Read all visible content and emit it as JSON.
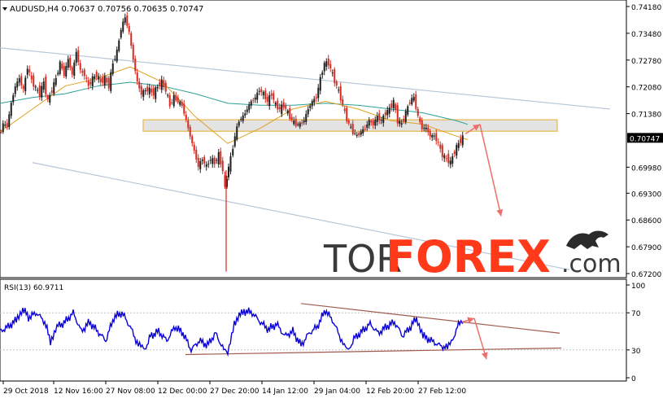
{
  "header": {
    "symbol_line": "AUDUSD,H4  0.70637 0.70756 0.70635 0.70747"
  },
  "rsi_header": "RSI(13) 60.9711",
  "logo": {
    "left": "TOR",
    "right": "FOREX",
    "suffix": ".com"
  },
  "colors": {
    "bull": "#1c1c1c",
    "bear": "#d62a20",
    "ma_fast": "#e0a020",
    "ma_slow": "#2aa197",
    "channel": "#b7c7d9",
    "zone_fill": "#dcdcdc",
    "zone_border": "#e8b84a",
    "arrow": "#ee6e68",
    "rsi_line": "#0a00d8",
    "rsi_trend": "#a05a50",
    "logo_dark": "#3a3a3a",
    "logo_accent": "#ff3a1a"
  },
  "chart_data": [
    {
      "type": "line",
      "title": "AUDUSD,H4  0.70637 0.70756 0.70635 0.70747",
      "ylim": [
        0.672,
        0.7418
      ],
      "y_ticks": [
        "0.74180",
        "0.73480",
        "0.72780",
        "0.72080",
        "0.71380",
        "0.70747",
        "0.69980",
        "0.69300",
        "0.68600",
        "0.67900",
        "0.67200"
      ],
      "current_price_label": "0.70747",
      "x_tick_labels": [
        "29 Oct 2018",
        "12 Nov 16:00",
        "27 Nov 08:00",
        "12 Dec 00:00",
        "27 Dec 20:00",
        "14 Jan 12:00",
        "29 Jan 04:00",
        "12 Feb 20:00",
        "27 Feb 12:00"
      ],
      "close_path": [
        [
          0,
          0.708
        ],
        [
          5,
          0.711
        ],
        [
          10,
          0.7105
        ],
        [
          15,
          0.7165
        ],
        [
          20,
          0.721
        ],
        [
          25,
          0.723
        ],
        [
          30,
          0.72
        ],
        [
          35,
          0.726
        ],
        [
          40,
          0.7225
        ],
        [
          45,
          0.7205
        ],
        [
          50,
          0.719
        ],
        [
          55,
          0.722
        ],
        [
          60,
          0.717
        ],
        [
          65,
          0.72
        ],
        [
          70,
          0.723
        ],
        [
          75,
          0.727
        ],
        [
          80,
          0.724
        ],
        [
          85,
          0.728
        ],
        [
          90,
          0.724
        ],
        [
          95,
          0.73
        ],
        [
          100,
          0.725
        ],
        [
          105,
          0.724
        ],
        [
          110,
          0.721
        ],
        [
          115,
          0.723
        ],
        [
          120,
          0.724
        ],
        [
          125,
          0.722
        ],
        [
          130,
          0.723
        ],
        [
          135,
          0.721
        ],
        [
          140,
          0.727
        ],
        [
          145,
          0.73
        ],
        [
          150,
          0.736
        ],
        [
          155,
          0.739
        ],
        [
          160,
          0.735
        ],
        [
          165,
          0.728
        ],
        [
          170,
          0.722
        ],
        [
          175,
          0.719
        ],
        [
          180,
          0.72
        ],
        [
          185,
          0.72
        ],
        [
          190,
          0.719
        ],
        [
          195,
          0.721
        ],
        [
          200,
          0.722
        ],
        [
          205,
          0.72
        ],
        [
          210,
          0.716
        ],
        [
          215,
          0.718
        ],
        [
          220,
          0.717
        ],
        [
          225,
          0.716
        ],
        [
          230,
          0.712
        ],
        [
          235,
          0.708
        ],
        [
          240,
          0.704
        ],
        [
          245,
          0.7
        ],
        [
          250,
          0.702
        ],
        [
          255,
          0.7
        ],
        [
          260,
          0.702
        ],
        [
          265,
          0.701
        ],
        [
          270,
          0.703
        ],
        [
          275,
          0.699
        ],
        [
          278,
          0.694
        ],
        [
          282,
          0.7
        ],
        [
          285,
          0.702
        ],
        [
          290,
          0.708
        ],
        [
          295,
          0.712
        ],
        [
          300,
          0.713
        ],
        [
          305,
          0.715
        ],
        [
          310,
          0.717
        ],
        [
          315,
          0.718
        ],
        [
          320,
          0.72
        ],
        [
          325,
          0.719
        ],
        [
          330,
          0.717
        ],
        [
          335,
          0.719
        ],
        [
          340,
          0.716
        ],
        [
          345,
          0.715
        ],
        [
          350,
          0.716
        ],
        [
          355,
          0.714
        ],
        [
          360,
          0.712
        ],
        [
          365,
          0.711
        ],
        [
          370,
          0.711
        ],
        [
          375,
          0.712
        ],
        [
          380,
          0.715
        ],
        [
          385,
          0.717
        ],
        [
          390,
          0.718
        ],
        [
          395,
          0.723
        ],
        [
          400,
          0.727
        ],
        [
          405,
          0.727
        ],
        [
          410,
          0.724
        ],
        [
          415,
          0.721
        ],
        [
          420,
          0.718
        ],
        [
          425,
          0.714
        ],
        [
          430,
          0.711
        ],
        [
          435,
          0.709
        ],
        [
          440,
          0.708
        ],
        [
          445,
          0.709
        ],
        [
          450,
          0.71
        ],
        [
          455,
          0.712
        ],
        [
          460,
          0.711
        ],
        [
          465,
          0.713
        ],
        [
          470,
          0.712
        ],
        [
          475,
          0.714
        ],
        [
          480,
          0.715
        ],
        [
          485,
          0.717
        ],
        [
          490,
          0.712
        ],
        [
          495,
          0.711
        ],
        [
          500,
          0.714
        ],
        [
          505,
          0.717
        ],
        [
          510,
          0.718
        ],
        [
          515,
          0.713
        ],
        [
          520,
          0.71
        ],
        [
          525,
          0.71
        ],
        [
          530,
          0.708
        ],
        [
          535,
          0.708
        ],
        [
          540,
          0.706
        ],
        [
          545,
          0.703
        ],
        [
          550,
          0.702
        ],
        [
          555,
          0.701
        ],
        [
          560,
          0.704
        ],
        [
          565,
          0.706
        ],
        [
          570,
          0.7075
        ]
      ],
      "extremes": [
        {
          "x": 278,
          "low": 0.6725
        }
      ],
      "ma_fast_path": [
        [
          0,
          0.709
        ],
        [
          40,
          0.715
        ],
        [
          80,
          0.721
        ],
        [
          120,
          0.723
        ],
        [
          160,
          0.726
        ],
        [
          200,
          0.722
        ],
        [
          240,
          0.713
        ],
        [
          280,
          0.706
        ],
        [
          320,
          0.71
        ],
        [
          360,
          0.715
        ],
        [
          400,
          0.717
        ],
        [
          440,
          0.715
        ],
        [
          480,
          0.712
        ],
        [
          520,
          0.711
        ],
        [
          560,
          0.708
        ],
        [
          575,
          0.707
        ]
      ],
      "ma_slow_path": [
        [
          0,
          0.7165
        ],
        [
          40,
          0.718
        ],
        [
          80,
          0.719
        ],
        [
          120,
          0.721
        ],
        [
          160,
          0.722
        ],
        [
          200,
          0.721
        ],
        [
          240,
          0.719
        ],
        [
          280,
          0.7165
        ],
        [
          320,
          0.716
        ],
        [
          360,
          0.716
        ],
        [
          400,
          0.7165
        ],
        [
          440,
          0.716
        ],
        [
          480,
          0.715
        ],
        [
          520,
          0.714
        ],
        [
          560,
          0.712
        ],
        [
          575,
          0.711
        ]
      ],
      "channel_lines": [
        {
          "x1": 0,
          "y1": 0.731,
          "x2": 750,
          "y2": 0.715
        },
        {
          "x1": 40,
          "y1": 0.701,
          "x2": 700,
          "y2": 0.673
        }
      ],
      "zone": {
        "y_top": 0.7122,
        "y_bottom": 0.7092
      },
      "forecast_arrows": [
        {
          "x1": 572,
          "y1": 0.7085,
          "x2": 590,
          "y2": 0.711
        },
        {
          "x1": 590,
          "y1": 0.711,
          "x2": 616,
          "y2": 0.687
        }
      ]
    },
    {
      "type": "line",
      "title": "RSI(13) 60.9711",
      "ylim": [
        0,
        100
      ],
      "y_ticks": [
        "100",
        "70",
        "30",
        "0"
      ],
      "rsi_path": [
        [
          0,
          50
        ],
        [
          10,
          55
        ],
        [
          20,
          62
        ],
        [
          28,
          75
        ],
        [
          35,
          65
        ],
        [
          45,
          70
        ],
        [
          55,
          60
        ],
        [
          62,
          40
        ],
        [
          70,
          55
        ],
        [
          80,
          60
        ],
        [
          90,
          70
        ],
        [
          100,
          50
        ],
        [
          110,
          60
        ],
        [
          120,
          50
        ],
        [
          130,
          40
        ],
        [
          140,
          65
        ],
        [
          150,
          70
        ],
        [
          160,
          55
        ],
        [
          170,
          35
        ],
        [
          178,
          30
        ],
        [
          185,
          45
        ],
        [
          195,
          50
        ],
        [
          205,
          40
        ],
        [
          215,
          55
        ],
        [
          225,
          48
        ],
        [
          235,
          30
        ],
        [
          245,
          40
        ],
        [
          255,
          35
        ],
        [
          265,
          48
        ],
        [
          275,
          30
        ],
        [
          280,
          25
        ],
        [
          288,
          60
        ],
        [
          300,
          72
        ],
        [
          310,
          70
        ],
        [
          320,
          60
        ],
        [
          330,
          52
        ],
        [
          340,
          58
        ],
        [
          350,
          45
        ],
        [
          360,
          50
        ],
        [
          370,
          35
        ],
        [
          380,
          48
        ],
        [
          390,
          55
        ],
        [
          400,
          73
        ],
        [
          410,
          60
        ],
        [
          420,
          40
        ],
        [
          428,
          28
        ],
        [
          435,
          42
        ],
        [
          445,
          50
        ],
        [
          455,
          58
        ],
        [
          465,
          48
        ],
        [
          475,
          55
        ],
        [
          485,
          60
        ],
        [
          495,
          45
        ],
        [
          505,
          55
        ],
        [
          512,
          65
        ],
        [
          520,
          45
        ],
        [
          530,
          40
        ],
        [
          540,
          35
        ],
        [
          550,
          32
        ],
        [
          558,
          45
        ],
        [
          565,
          60
        ],
        [
          570,
          61
        ]
      ],
      "trend_lines": [
        {
          "x1": 370,
          "y1": 80,
          "x2": 688,
          "y2": 48
        },
        {
          "x1": 228,
          "y1": 25,
          "x2": 690,
          "y2": 32
        }
      ],
      "forecast_arrows": [
        {
          "x1": 568,
          "y1": 60,
          "x2": 583,
          "y2": 64
        },
        {
          "x1": 583,
          "y1": 64,
          "x2": 598,
          "y2": 20
        }
      ]
    }
  ]
}
